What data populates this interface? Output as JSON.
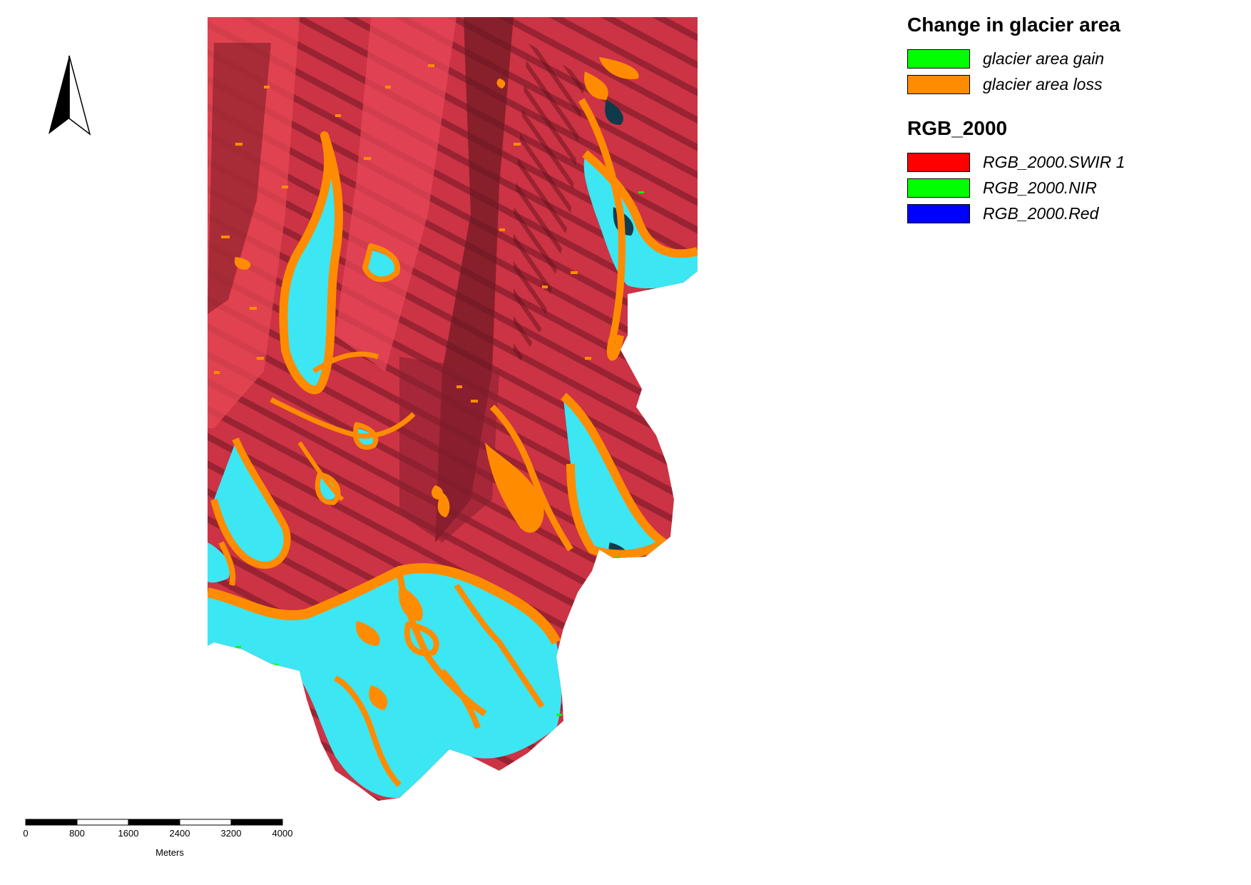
{
  "legend": {
    "groups": [
      {
        "title": "Change in glacier area",
        "items": [
          {
            "label": "glacier area gain",
            "color": "#00ff00"
          },
          {
            "label": "glacier area loss",
            "color": "#ff8c00"
          }
        ]
      },
      {
        "title": "RGB_2000",
        "items": [
          {
            "label": "RGB_2000.SWIR 1",
            "color": "#ff0000"
          },
          {
            "label": "RGB_2000.NIR",
            "color": "#00ff00"
          },
          {
            "label": "RGB_2000.Red",
            "color": "#0000ff"
          }
        ]
      }
    ]
  },
  "scalebar": {
    "ticks": [
      "0",
      "800",
      "1600",
      "2400",
      "3200",
      "4000"
    ],
    "unit": "Meters"
  },
  "colors": {
    "terrain_red": "#d23a48",
    "terrain_dark": "#7a1d28",
    "glacier_cyan": "#3ce6f2",
    "loss_orange": "#ff8c00",
    "gain_green": "#00ff00"
  }
}
